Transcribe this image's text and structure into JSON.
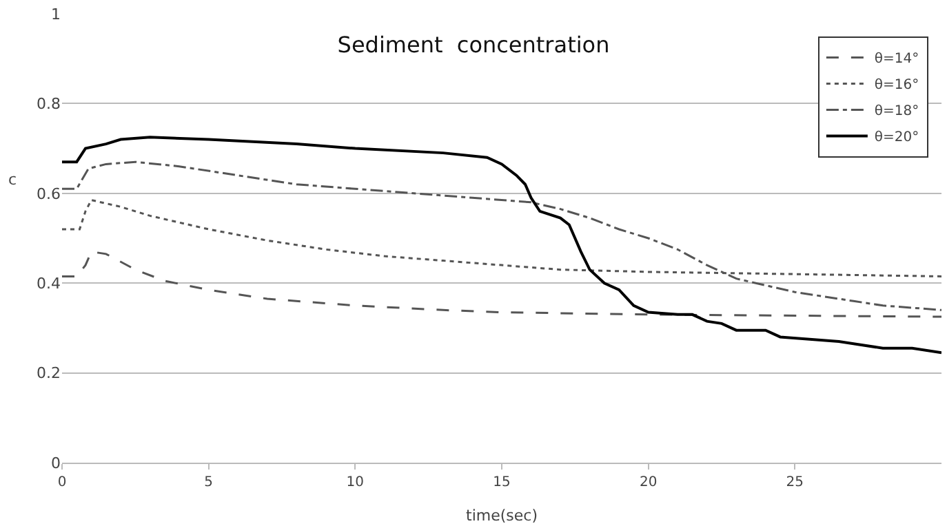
{
  "chart_data": {
    "type": "line",
    "title": "Sediment  concentration",
    "xlabel": "time(sec)",
    "ylabel": "c",
    "xlim": [
      0,
      30
    ],
    "xticks": [
      0,
      5,
      10,
      15,
      20,
      25
    ],
    "ylim": [
      0,
      1
    ],
    "yticks": [
      0,
      0.2,
      0.4,
      0.6,
      0.8,
      1
    ],
    "grid": "y",
    "legend": "top right",
    "marker": "none",
    "series": [
      {
        "name": "θ=14°",
        "color": "#555555",
        "line_style": "dashed",
        "x": [
          0,
          0.5,
          0.8,
          1,
          1.5,
          2.5,
          3.5,
          5,
          7,
          10,
          13,
          15,
          20,
          30
        ],
        "values": [
          0.415,
          0.415,
          0.44,
          0.47,
          0.465,
          0.43,
          0.405,
          0.385,
          0.365,
          0.35,
          0.34,
          0.335,
          0.33,
          0.325
        ]
      },
      {
        "name": "θ=16°",
        "color": "#555555",
        "line_style": "dotted",
        "x": [
          0,
          0.6,
          0.8,
          1,
          2,
          3,
          5,
          7,
          9,
          11,
          13,
          15,
          17,
          20,
          25,
          30
        ],
        "values": [
          0.52,
          0.52,
          0.56,
          0.585,
          0.57,
          0.55,
          0.52,
          0.495,
          0.475,
          0.46,
          0.45,
          0.44,
          0.43,
          0.425,
          0.42,
          0.415
        ]
      },
      {
        "name": "θ=18°",
        "color": "#555555",
        "line_style": "dashdot",
        "x": [
          0,
          0.5,
          0.9,
          1.5,
          2.5,
          4,
          6,
          8,
          10,
          12,
          14,
          16,
          17,
          18,
          19,
          20,
          21,
          22,
          23,
          24,
          25,
          26,
          27,
          28,
          30
        ],
        "values": [
          0.61,
          0.61,
          0.655,
          0.665,
          0.67,
          0.66,
          0.64,
          0.62,
          0.61,
          0.6,
          0.59,
          0.58,
          0.565,
          0.545,
          0.52,
          0.5,
          0.475,
          0.44,
          0.41,
          0.395,
          0.38,
          0.37,
          0.36,
          0.35,
          0.34
        ]
      },
      {
        "name": "θ=20°",
        "color": "#000000",
        "line_style": "solid",
        "x": [
          0,
          0.5,
          0.8,
          1.5,
          2,
          3,
          5,
          8,
          10,
          13,
          14.5,
          15,
          15.5,
          15.8,
          16,
          16.3,
          17,
          17.3,
          17.7,
          18,
          18.5,
          19,
          19.5,
          20,
          21,
          21.5,
          22,
          22.5,
          23,
          24,
          24.5,
          25.5,
          26.5,
          27,
          28,
          29,
          30
        ],
        "values": [
          0.67,
          0.67,
          0.7,
          0.71,
          0.72,
          0.725,
          0.72,
          0.71,
          0.7,
          0.69,
          0.68,
          0.665,
          0.64,
          0.62,
          0.59,
          0.56,
          0.545,
          0.53,
          0.47,
          0.43,
          0.4,
          0.385,
          0.35,
          0.335,
          0.33,
          0.33,
          0.315,
          0.31,
          0.295,
          0.295,
          0.28,
          0.275,
          0.27,
          0.265,
          0.255,
          0.255,
          0.245
        ]
      }
    ]
  }
}
